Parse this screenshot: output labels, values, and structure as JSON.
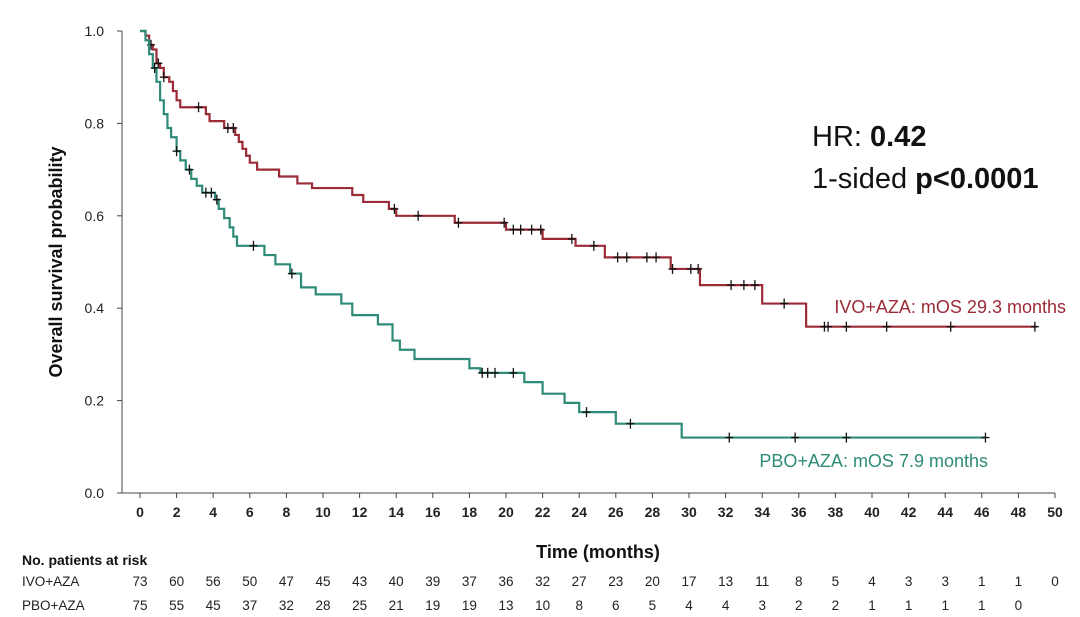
{
  "chart_data": {
    "type": "line",
    "subtype": "kaplan-meier",
    "xlabel": "Time (months)",
    "ylabel": "Overall survival probability",
    "xlim": [
      0,
      50
    ],
    "ylim": [
      0,
      1.0
    ],
    "x_ticks": [
      0,
      2,
      4,
      6,
      8,
      10,
      12,
      14,
      16,
      18,
      20,
      22,
      24,
      26,
      28,
      30,
      32,
      34,
      36,
      38,
      40,
      42,
      44,
      46,
      48,
      50
    ],
    "y_ticks": [
      0.0,
      0.2,
      0.4,
      0.6,
      0.8,
      1.0
    ],
    "y_tick_labels": [
      "0.0",
      "0.2",
      "0.4",
      "0.6",
      "0.8",
      "1.0"
    ],
    "annotations": {
      "hr_prefix": "HR: ",
      "hr_value": "0.42",
      "p_prefix": "1-sided ",
      "p_value": "p<0.0001"
    },
    "series": [
      {
        "name": "IVO+AZA",
        "label": "IVO+AZA: mOS 29.3 months",
        "color": "#9b2b37",
        "steps": [
          [
            0,
            1.0
          ],
          [
            0.3,
            0.99
          ],
          [
            0.5,
            0.97
          ],
          [
            0.7,
            0.96
          ],
          [
            0.9,
            0.93
          ],
          [
            1.1,
            0.92
          ],
          [
            1.3,
            0.9
          ],
          [
            1.6,
            0.89
          ],
          [
            1.8,
            0.87
          ],
          [
            2.0,
            0.85
          ],
          [
            2.2,
            0.835
          ],
          [
            3.6,
            0.82
          ],
          [
            3.8,
            0.805
          ],
          [
            4.6,
            0.79
          ],
          [
            5.2,
            0.775
          ],
          [
            5.4,
            0.76
          ],
          [
            5.6,
            0.745
          ],
          [
            5.8,
            0.73
          ],
          [
            6.0,
            0.715
          ],
          [
            6.4,
            0.7
          ],
          [
            7.6,
            0.685
          ],
          [
            8.6,
            0.67
          ],
          [
            9.4,
            0.66
          ],
          [
            11.6,
            0.645
          ],
          [
            12.2,
            0.63
          ],
          [
            13.6,
            0.615
          ],
          [
            14.0,
            0.6
          ],
          [
            17.2,
            0.585
          ],
          [
            20.0,
            0.57
          ],
          [
            22.0,
            0.55
          ],
          [
            23.8,
            0.535
          ],
          [
            25.4,
            0.51
          ],
          [
            29.0,
            0.485
          ],
          [
            30.6,
            0.45
          ],
          [
            34.0,
            0.41
          ],
          [
            36.4,
            0.36
          ]
        ],
        "end_x": 49,
        "censor_x": [
          0.6,
          1.0,
          1.3,
          3.2,
          4.8,
          5.1,
          13.9,
          15.2,
          17.4,
          19.9,
          20.4,
          20.8,
          21.4,
          21.9,
          23.6,
          24.8,
          26.1,
          26.6,
          27.7,
          28.2,
          29.1,
          30.1,
          30.5,
          32.3,
          33.0,
          33.6,
          35.2,
          37.4,
          37.6,
          38.6,
          40.8,
          44.3,
          48.9
        ]
      },
      {
        "name": "PBO+AZA",
        "label": "PBO+AZA: mOS 7.9 months",
        "color": "#2e8b78",
        "steps": [
          [
            0,
            1.0
          ],
          [
            0.3,
            0.98
          ],
          [
            0.5,
            0.95
          ],
          [
            0.7,
            0.92
          ],
          [
            0.9,
            0.89
          ],
          [
            1.1,
            0.85
          ],
          [
            1.3,
            0.82
          ],
          [
            1.5,
            0.79
          ],
          [
            1.7,
            0.77
          ],
          [
            2.0,
            0.74
          ],
          [
            2.2,
            0.72
          ],
          [
            2.5,
            0.7
          ],
          [
            2.8,
            0.68
          ],
          [
            3.1,
            0.665
          ],
          [
            3.4,
            0.65
          ],
          [
            4.1,
            0.635
          ],
          [
            4.3,
            0.615
          ],
          [
            4.6,
            0.595
          ],
          [
            4.9,
            0.575
          ],
          [
            5.1,
            0.555
          ],
          [
            5.3,
            0.535
          ],
          [
            6.8,
            0.515
          ],
          [
            7.4,
            0.495
          ],
          [
            8.2,
            0.475
          ],
          [
            8.8,
            0.445
          ],
          [
            9.6,
            0.43
          ],
          [
            11.0,
            0.41
          ],
          [
            11.6,
            0.385
          ],
          [
            13.0,
            0.365
          ],
          [
            13.8,
            0.33
          ],
          [
            14.2,
            0.31
          ],
          [
            15.0,
            0.29
          ],
          [
            18.0,
            0.27
          ],
          [
            18.6,
            0.26
          ],
          [
            21.0,
            0.24
          ],
          [
            22.0,
            0.215
          ],
          [
            23.2,
            0.195
          ],
          [
            24.0,
            0.175
          ],
          [
            26.0,
            0.15
          ],
          [
            29.6,
            0.12
          ]
        ],
        "end_x": 46.2,
        "censor_x": [
          0.8,
          2.0,
          2.7,
          3.6,
          3.9,
          4.2,
          6.2,
          8.3,
          18.7,
          19.0,
          19.4,
          20.4,
          24.4,
          26.8,
          32.2,
          35.8,
          38.6,
          46.2
        ]
      }
    ],
    "risk_table": {
      "title": "No. patients at risk",
      "times": [
        0,
        2,
        4,
        6,
        8,
        10,
        12,
        14,
        16,
        18,
        20,
        22,
        24,
        26,
        28,
        30,
        32,
        34,
        36,
        38,
        40,
        42,
        44,
        46,
        48,
        50
      ],
      "rows": [
        {
          "name": "IVO+AZA",
          "values": [
            "73",
            "60",
            "56",
            "50",
            "47",
            "45",
            "43",
            "40",
            "39",
            "37",
            "36",
            "32",
            "27",
            "23",
            "20",
            "17",
            "13",
            "11",
            "8",
            "5",
            "4",
            "3",
            "3",
            "1",
            "1",
            "0"
          ]
        },
        {
          "name": "PBO+AZA",
          "values": [
            "75",
            "55",
            "45",
            "37",
            "32",
            "28",
            "25",
            "21",
            "19",
            "19",
            "13",
            "10",
            "8",
            "6",
            "5",
            "4",
            "4",
            "3",
            "2",
            "2",
            "1",
            "1",
            "1",
            "1",
            "0"
          ]
        }
      ]
    }
  }
}
